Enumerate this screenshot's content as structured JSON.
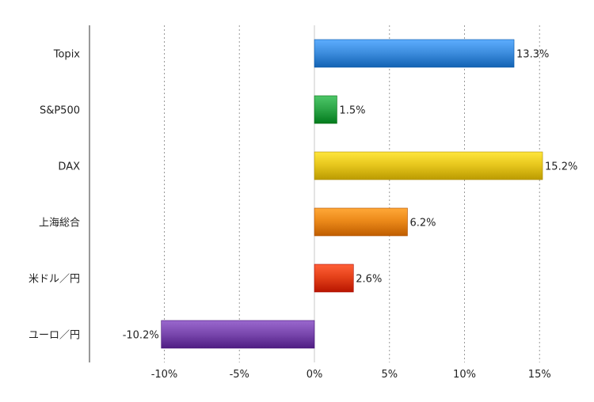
{
  "chart_data": {
    "type": "bar",
    "orientation": "horizontal",
    "title": "",
    "xlabel": "",
    "ylabel": "",
    "categories": [
      "Topix",
      "S&P500",
      "DAX",
      "上海総合",
      "米ドル／円",
      "ユーロ／円"
    ],
    "values": [
      13.3,
      1.5,
      15.2,
      6.2,
      2.6,
      -10.2
    ],
    "data_labels": [
      "13.3%",
      "1.5%",
      "15.2%",
      "6.2%",
      "2.6%",
      "-10.2%"
    ],
    "colors": [
      "#3f8fe0",
      "#2fa84a",
      "#e8c81e",
      "#ec8a1a",
      "#e5421a",
      "#7c4ab0"
    ],
    "xlim": [
      -15,
      15
    ],
    "xticks": [
      -10,
      -5,
      0,
      5,
      10,
      15
    ],
    "xtick_labels": [
      "-10%",
      "-5%",
      "0%",
      "5%",
      "10%",
      "15%"
    ],
    "grid": "vertical dotted",
    "legend": "none"
  }
}
